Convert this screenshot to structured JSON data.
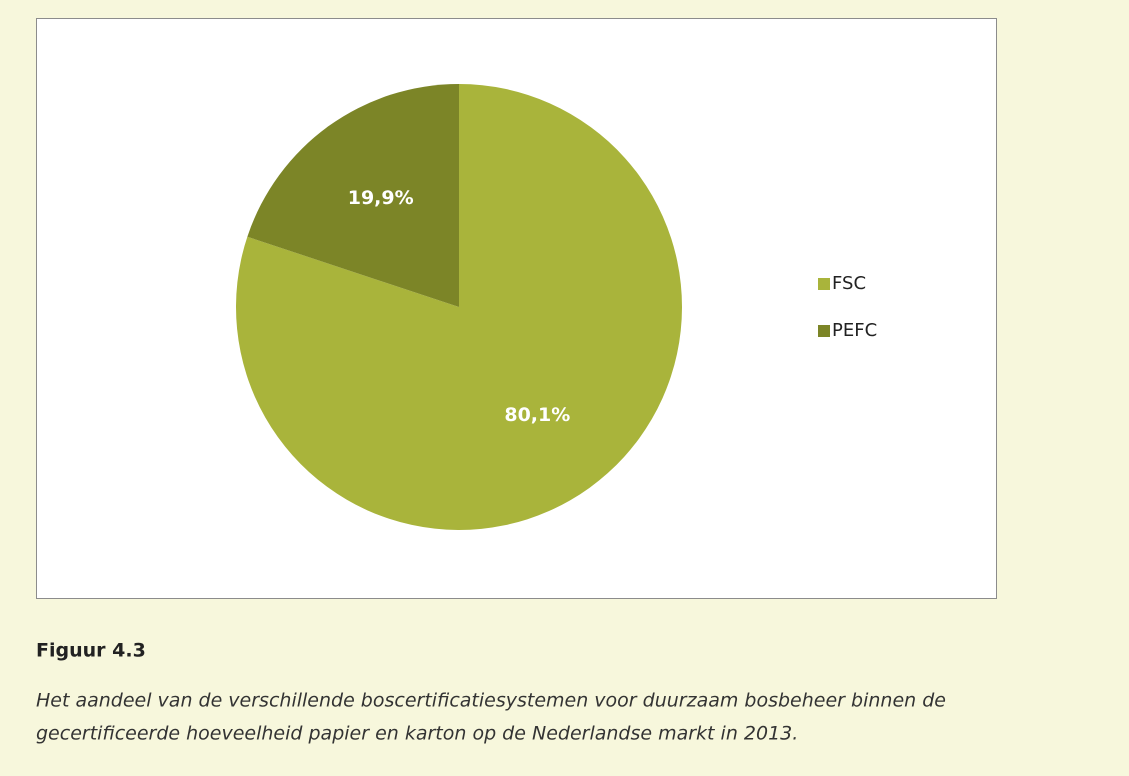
{
  "chart_data": {
    "type": "pie",
    "categories": [
      "FSC",
      "PEFC"
    ],
    "values": [
      80.1,
      19.9
    ],
    "value_labels": [
      "80,1%",
      "19,9%"
    ],
    "colors": [
      "#a9b43b",
      "#7c8527"
    ],
    "legend": "right"
  },
  "figure": {
    "label": "Figuur 4.3",
    "caption": [
      "Het aandeel van de verschillende boscertificatiesystemen voor duurzaam bosbeheer binnen de",
      "gecertificeerde hoeveelheid papier en karton op de Nederlandse markt in 2013."
    ]
  }
}
